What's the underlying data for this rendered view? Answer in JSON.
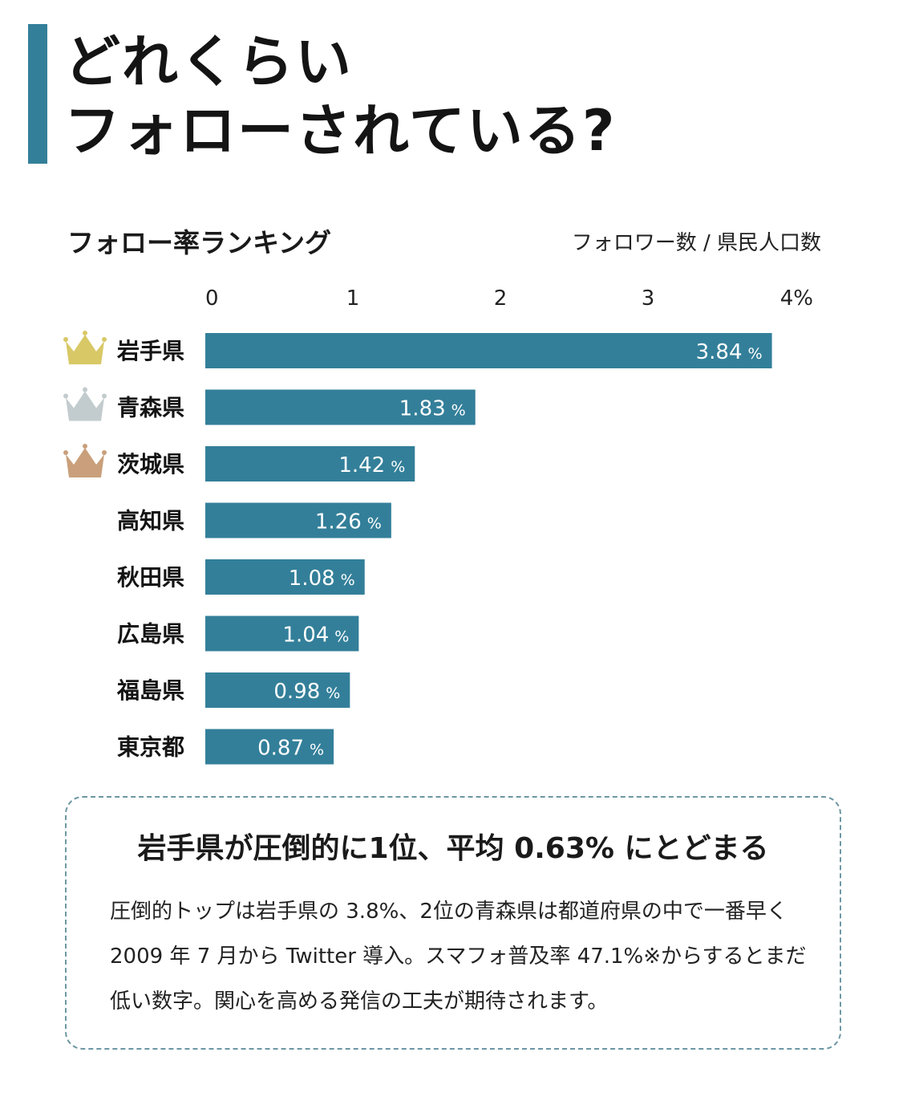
{
  "header": {
    "title_line1": "どれくらい",
    "title_line2": "フォローされている?"
  },
  "chart_title": "フォロー率ランキング",
  "unit_note": "フォロワー数 / 県民人口数",
  "colors": {
    "accent": "#337f99",
    "bar": "#337f99",
    "crown_gold": "#d8c866",
    "crown_silver": "#c2cbcd",
    "crown_bronze": "#c9a07b"
  },
  "chart_data": {
    "type": "bar",
    "orientation": "horizontal",
    "categories": [
      "岩手県",
      "青森県",
      "茨城県",
      "高知県",
      "秋田県",
      "広島県",
      "福島県",
      "東京都"
    ],
    "values": [
      3.84,
      1.83,
      1.42,
      1.26,
      1.08,
      1.04,
      0.98,
      0.87
    ],
    "value_labels": [
      "3.84",
      "1.83",
      "1.42",
      "1.26",
      "1.08",
      "1.04",
      "0.98",
      "0.87"
    ],
    "value_unit": "%",
    "crowns": [
      "gold",
      "silver",
      "bronze"
    ],
    "xlim": [
      0,
      4
    ],
    "x_ticks": [
      0,
      1,
      2,
      3,
      4
    ],
    "x_tick_labels": [
      "0",
      "1",
      "2",
      "3",
      "4%"
    ],
    "axis_position": "top",
    "grid": false
  },
  "note": {
    "heading": "岩手県が圧倒的に1位、平均 0.63% にとどまる",
    "body": "圧倒的トップは岩手県の 3.8%、2位の青森県は都道府県の中で一番早く 2009 年 7 月から Twitter 導入。スマフォ普及率 47.1%※からするとまだ低い数字。関心を高める発信の工夫が期待されます。"
  }
}
